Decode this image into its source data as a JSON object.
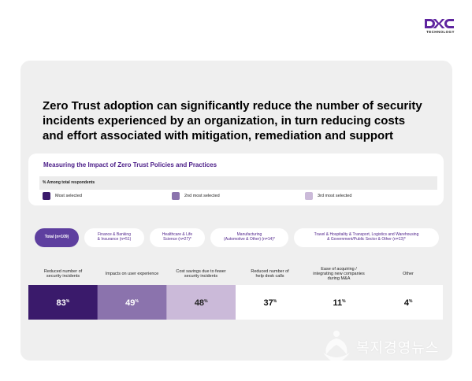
{
  "brand": {
    "logo_text": "DXC",
    "sub": "TECHNOLOGY",
    "color": "#5f259f"
  },
  "headline": "Zero Trust adoption can significantly reduce the number of security incidents experienced by an organization, in turn reducing costs and effort associated with mitigation, remediation and support",
  "panel": {
    "title": "Measuring the Impact of Zero Trust Policies and Practices",
    "base_label": "% Among total respondents",
    "legend": [
      {
        "label": "Most selected",
        "color": "#3a1a6b"
      },
      {
        "label": "2nd most selected",
        "color": "#8b73ad"
      },
      {
        "label": "3rd most selected",
        "color": "#cbbad9"
      }
    ]
  },
  "tabs": [
    {
      "label": "Total (n=109)",
      "active": true
    },
    {
      "label": "Finance & Banking\n& Insurance (n=51)",
      "active": false
    },
    {
      "label": "Healthcare & Life\nScience (n=27)*",
      "active": false
    },
    {
      "label": "Manufacturing\n(Automotive & Other) (n=14)*",
      "active": false
    },
    {
      "label": "Travel & Hospitality & Transport, Logistics and Warehousing\n& Government/Public Sector & Other (n=13)*",
      "active": false
    }
  ],
  "chart_data": {
    "type": "table",
    "unit": "%",
    "categories": [
      "Reduced number of\nsecurity incidents",
      "Impacts on user experience",
      "Cost savings due to fewer\nsecurity incidents",
      "Reduced number of\nhelp desk calls",
      "Ease of acquiring /\nintegrating new companies\nduring M&A",
      "Other"
    ],
    "values": [
      83,
      49,
      48,
      37,
      11,
      4
    ],
    "rank_colors": [
      "#3a1a6b",
      "#8b73ad",
      "#cbbad9",
      "#ffffff",
      "#ffffff",
      "#ffffff"
    ],
    "text_colors": [
      "#ffffff",
      "#ffffff",
      "#222222",
      "#111111",
      "#111111",
      "#111111"
    ]
  },
  "watermark": {
    "text": "복지경영뉴스"
  }
}
